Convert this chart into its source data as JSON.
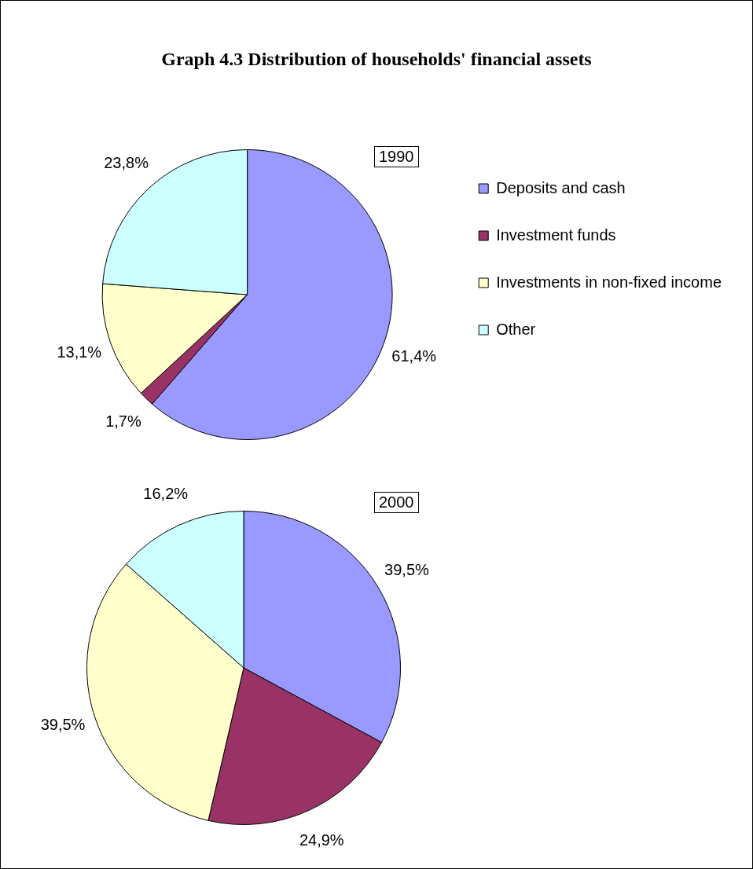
{
  "chart_data": [
    {
      "type": "pie",
      "title": "Graph 4.3 Distribution of households' financial assets",
      "subtitle": "1990",
      "categories": [
        "Deposits and cash",
        "Investment funds",
        "Investments in non-fixed income",
        "Other"
      ],
      "values": [
        61.4,
        1.7,
        13.1,
        23.8
      ],
      "value_labels": [
        "61,4%",
        "1,7%",
        "13,1%",
        "23,8%"
      ],
      "colors": [
        "#9999ff",
        "#993366",
        "#ffffcc",
        "#ccffff"
      ],
      "legend": "top right"
    },
    {
      "type": "pie",
      "subtitle": "2000",
      "values": [
        39.5,
        24.9,
        39.5,
        16.2
      ],
      "value_labels": [
        "39,5%",
        "24,9%",
        "39,5%",
        "16,2%"
      ],
      "colors": [
        "#9999ff",
        "#993366",
        "#ffffcc",
        "#ccffff"
      ],
      "legend": false
    }
  ]
}
